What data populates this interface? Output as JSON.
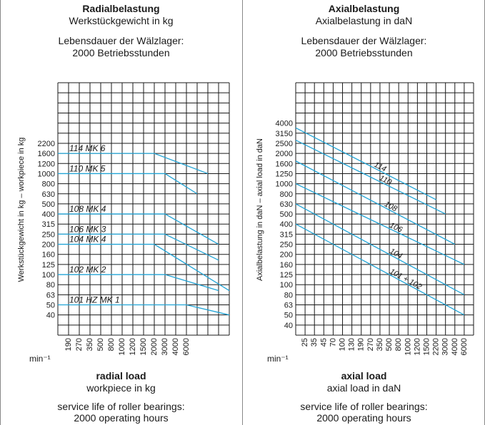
{
  "colors": {
    "grid": "#1a1a1a",
    "curve": "#22a4d6",
    "text": "#1a1a1a"
  },
  "panels": [
    {
      "id": "radial",
      "header": {
        "title": "Radialbelastung",
        "subtitle": "Werkstückgewicht in kg",
        "life_line1": "Lebensdauer der Wälzlager:",
        "life_line2": "2000 Betriebsstunden"
      },
      "footer": {
        "title": "radial load",
        "subtitle": "workpiece in kg",
        "life_line1": "service life of roller bearings:",
        "life_line2": "2000 operating hours"
      }
    },
    {
      "id": "axial",
      "header": {
        "title": "Axialbelastung",
        "subtitle": "Axialbelastung in daN",
        "life_line1": "Lebensdauer der Wälzlager:",
        "life_line2": "2000 Betriebsstunden"
      },
      "footer": {
        "title": "axial load",
        "subtitle": "axial load in daN",
        "life_line1": "service life of roller bearings:",
        "life_line2": "2000 operating hours"
      }
    }
  ],
  "chart_data": [
    {
      "type": "line",
      "title": "Radialbelastung",
      "ylabel": "Werkstückgewicht in kg – workpiece in kg",
      "x_unit_label": "min⁻¹",
      "x_tick_labels": [
        "190",
        "270",
        "350",
        "500",
        "800",
        "1000",
        "1200",
        "1500",
        "2000",
        "3000",
        "4000",
        "6000"
      ],
      "y_tick_labels": [
        "2200",
        "1600",
        "1200",
        "1000",
        "800",
        "630",
        "500",
        "400",
        "315",
        "250",
        "200",
        "160",
        "125",
        "100",
        "80",
        "63",
        "50",
        "40"
      ],
      "grid": true,
      "series": [
        {
          "name": "114 MK 6",
          "speed": [
            0,
            800,
            3000
          ],
          "load": [
            1600,
            1600,
            1000
          ]
        },
        {
          "name": "110 MK 5",
          "speed": [
            0,
            1000,
            2000
          ],
          "load": [
            1000,
            1000,
            630
          ]
        },
        {
          "name": "108 MK 4",
          "speed": [
            0,
            1000,
            4000
          ],
          "load": [
            400,
            400,
            200
          ]
        },
        {
          "name": "106 MK 3",
          "speed": [
            0,
            1000,
            4000
          ],
          "load": [
            250,
            250,
            140
          ]
        },
        {
          "name": "104 MK 4",
          "speed": [
            0,
            800,
            6000
          ],
          "load": [
            200,
            200,
            70
          ]
        },
        {
          "name": "102 MK 2",
          "speed": [
            0,
            1000,
            4000
          ],
          "load": [
            100,
            100,
            70
          ]
        },
        {
          "name": "101 HZ MK 1",
          "speed": [
            0,
            1500,
            6000
          ],
          "load": [
            50,
            50,
            35
          ]
        }
      ]
    },
    {
      "type": "line",
      "title": "Axialbelastung",
      "ylabel": "Axialbelastung in daN – axial load in daN",
      "x_unit_label": "min⁻¹",
      "x_tick_labels": [
        "25",
        "35",
        "45",
        "70",
        "100",
        "130",
        "190",
        "270",
        "350",
        "500",
        "800",
        "1000",
        "1200",
        "1500",
        "2200",
        "3000",
        "4000",
        "6000"
      ],
      "y_tick_labels": [
        "4000",
        "3150",
        "2500",
        "2000",
        "1600",
        "1250",
        "1000",
        "800",
        "630",
        "500",
        "400",
        "315",
        "250",
        "200",
        "160",
        "125",
        "100",
        "80",
        "63",
        "50",
        "40"
      ],
      "grid": true,
      "series": [
        {
          "name": "114",
          "speed": [
            19,
            2200
          ],
          "load": [
            3600,
            700
          ]
        },
        {
          "name": "110",
          "speed": [
            19,
            3000
          ],
          "load": [
            2700,
            500
          ]
        },
        {
          "name": "108",
          "speed": [
            19,
            4000
          ],
          "load": [
            1700,
            250
          ]
        },
        {
          "name": "106",
          "speed": [
            19,
            6000
          ],
          "load": [
            1000,
            160
          ]
        },
        {
          "name": "104",
          "speed": [
            19,
            6000
          ],
          "load": [
            630,
            80
          ]
        },
        {
          "name": "101 + 102",
          "speed": [
            19,
            6000
          ],
          "load": [
            400,
            50
          ]
        }
      ]
    }
  ]
}
